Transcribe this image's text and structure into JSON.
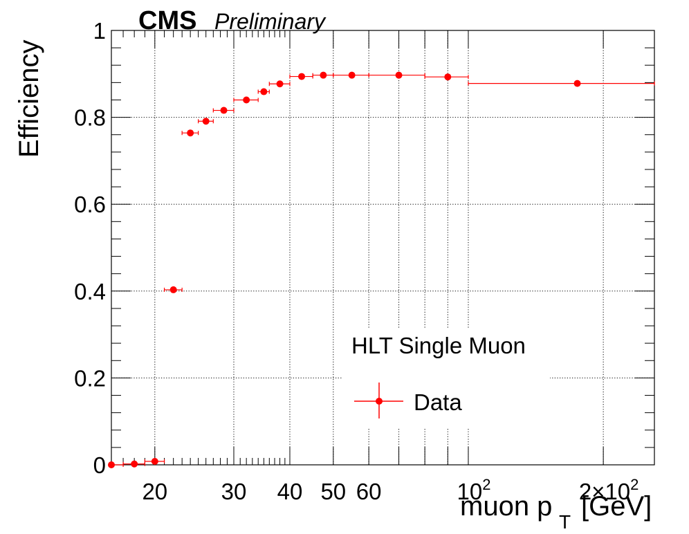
{
  "header": {
    "experiment": "CMS",
    "status": "Preliminary"
  },
  "chart_data": {
    "type": "scatter",
    "xlabel": "muon p",
    "xlabel_sub": "T",
    "xlabel_unit": "[GeV]",
    "ylabel": "Efficiency",
    "xscale": "log",
    "xlim": [
      16,
      260
    ],
    "ylim": [
      0,
      1
    ],
    "grid": true,
    "legend_position": "bottom-right",
    "legend_title": "HLT Single Muon",
    "x_tick_labels": [
      "20",
      "30",
      "40",
      "50",
      "60",
      "10^2",
      "2×10^2"
    ],
    "y_tick_labels": [
      "0",
      "0.2",
      "0.4",
      "0.6",
      "0.8",
      "1"
    ],
    "series": [
      {
        "name": "Data",
        "color": "#ff0000",
        "points": [
          {
            "x": 16,
            "y": 0.0,
            "xlo": 15,
            "xhi": 17
          },
          {
            "x": 18,
            "y": 0.002,
            "xlo": 17,
            "xhi": 19
          },
          {
            "x": 20,
            "y": 0.008,
            "xlo": 19,
            "xhi": 21
          },
          {
            "x": 22,
            "y": 0.403,
            "xlo": 21,
            "xhi": 23
          },
          {
            "x": 24,
            "y": 0.764,
            "xlo": 23,
            "xhi": 25
          },
          {
            "x": 26,
            "y": 0.791,
            "xlo": 25,
            "xhi": 27
          },
          {
            "x": 28.5,
            "y": 0.816,
            "xlo": 27,
            "xhi": 30
          },
          {
            "x": 32,
            "y": 0.84,
            "xlo": 30,
            "xhi": 34
          },
          {
            "x": 35,
            "y": 0.859,
            "xlo": 34,
            "xhi": 36
          },
          {
            "x": 38,
            "y": 0.877,
            "xlo": 36,
            "xhi": 40
          },
          {
            "x": 42.5,
            "y": 0.894,
            "xlo": 40,
            "xhi": 45
          },
          {
            "x": 47.5,
            "y": 0.897,
            "xlo": 45,
            "xhi": 50
          },
          {
            "x": 55,
            "y": 0.897,
            "xlo": 50,
            "xhi": 60
          },
          {
            "x": 70,
            "y": 0.897,
            "xlo": 60,
            "xhi": 80
          },
          {
            "x": 90,
            "y": 0.893,
            "xlo": 80,
            "xhi": 100
          },
          {
            "x": 175,
            "y": 0.878,
            "xlo": 100,
            "xhi": 260
          }
        ]
      }
    ]
  }
}
